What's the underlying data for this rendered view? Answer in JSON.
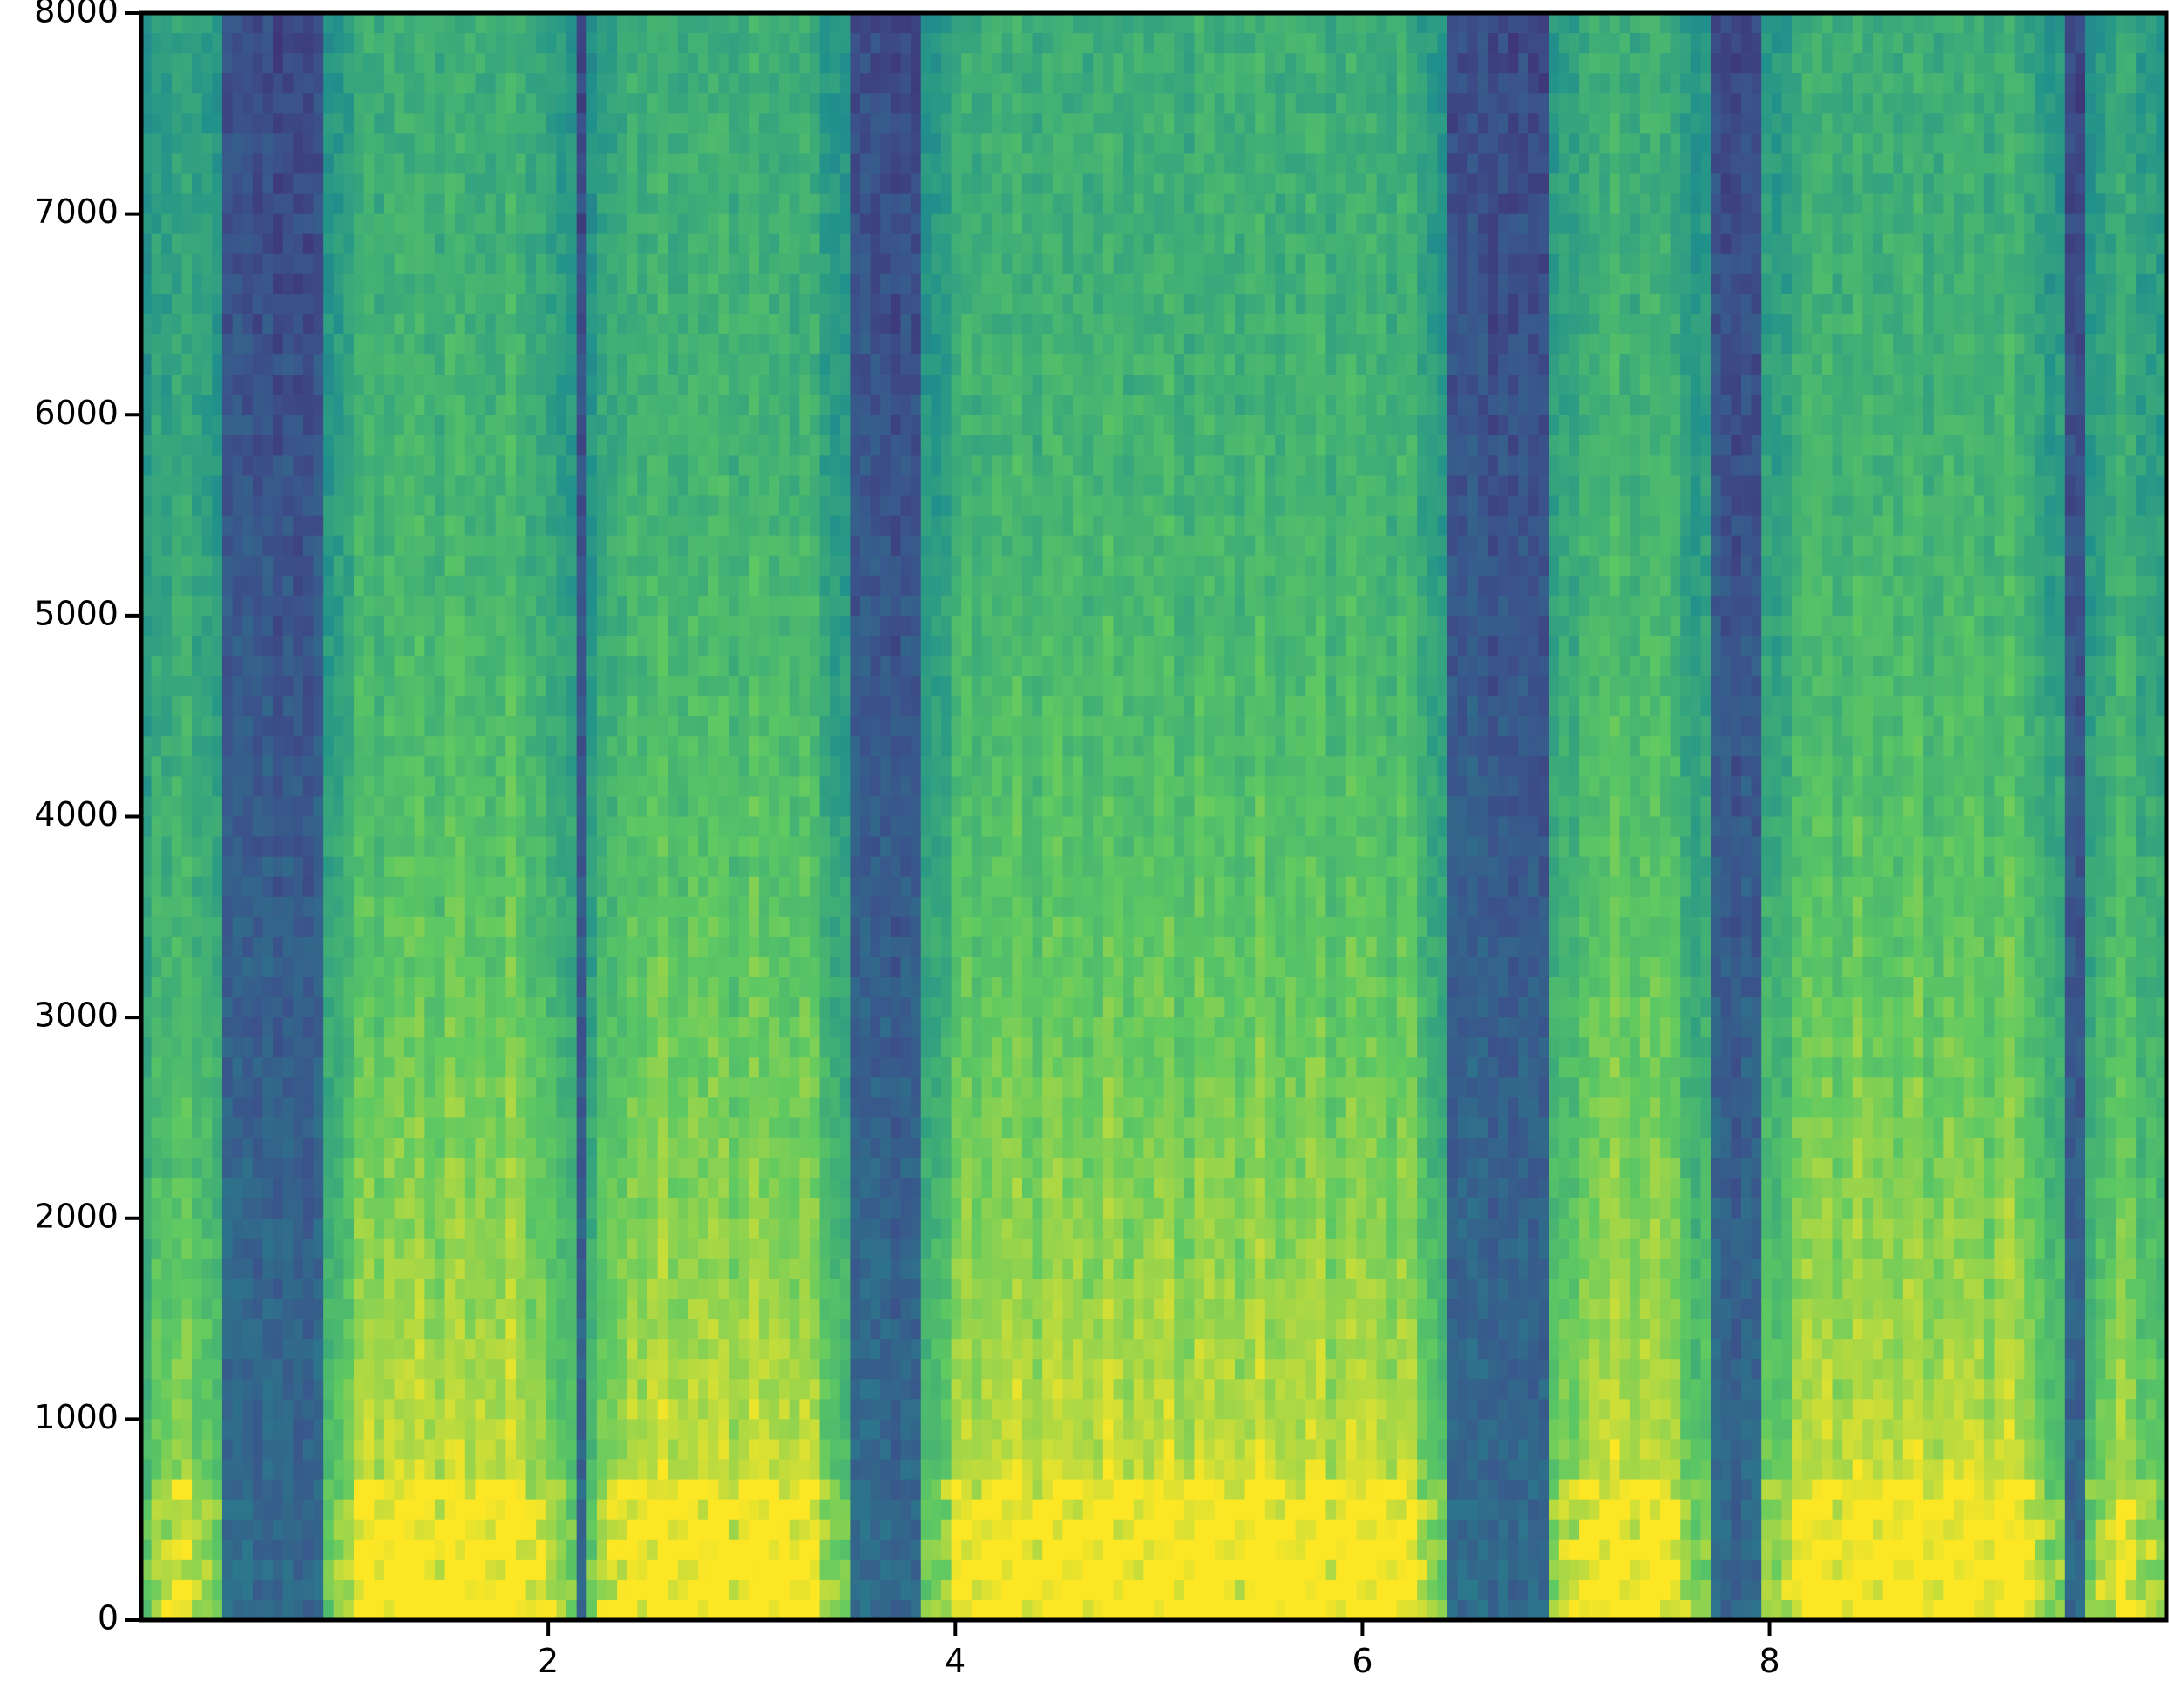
{
  "chart_data": {
    "type": "heatmap",
    "title": "",
    "xlabel": "",
    "ylabel": "",
    "xlim": [
      0,
      9.95
    ],
    "ylim": [
      0,
      8000
    ],
    "x_ticks": [
      {
        "value": 2,
        "label": "2"
      },
      {
        "value": 4,
        "label": "4"
      },
      {
        "value": 6,
        "label": "6"
      },
      {
        "value": 8,
        "label": "8"
      }
    ],
    "y_ticks": [
      {
        "value": 0,
        "label": "0"
      },
      {
        "value": 1000,
        "label": "1000"
      },
      {
        "value": 2000,
        "label": "2000"
      },
      {
        "value": 3000,
        "label": "3000"
      },
      {
        "value": 4000,
        "label": "4000"
      },
      {
        "value": 5000,
        "label": "5000"
      },
      {
        "value": 6000,
        "label": "6000"
      },
      {
        "value": 7000,
        "label": "7000"
      },
      {
        "value": 8000,
        "label": "8000"
      }
    ],
    "colormap": [
      "#440154",
      "#3b528b",
      "#21918c",
      "#5ec962",
      "#fde725"
    ],
    "grid": false,
    "speech_segments_seconds": [
      [
        0.02,
        0.38
      ],
      [
        0.9,
        2.12
      ],
      [
        2.18,
        3.47
      ],
      [
        3.85,
        6.42
      ],
      [
        6.9,
        7.7
      ],
      [
        7.95,
        9.45
      ],
      [
        9.55,
        9.95
      ]
    ]
  }
}
